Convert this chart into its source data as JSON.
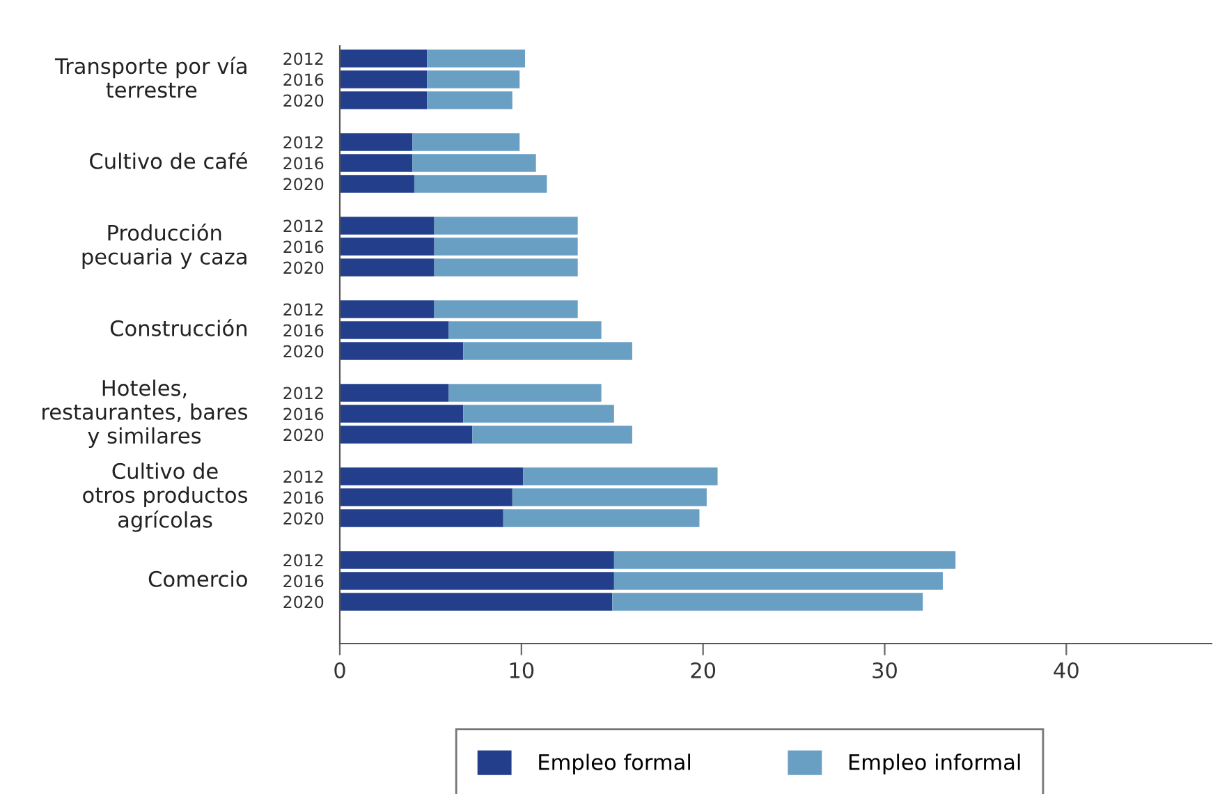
{
  "chart_data": {
    "type": "bar",
    "orientation": "horizontal",
    "stacked": true,
    "categories": [
      "2012",
      "2016",
      "2020",
      null,
      "2012",
      "2016",
      "2020",
      null,
      "2012",
      "2016",
      "2020",
      null,
      "2012",
      "2016",
      "2020",
      null,
      "2012",
      "2016",
      "2020",
      null,
      "2012",
      "2016",
      "2020",
      null,
      "2012",
      "2016",
      "2020"
    ],
    "series": [
      {
        "name": "Empleo formal",
        "color": "#233f8c",
        "values": [
          4.8,
          4.8,
          4.8,
          null,
          4.0,
          4.0,
          4.1,
          null,
          5.2,
          5.2,
          5.2,
          null,
          5.2,
          6.0,
          6.8,
          null,
          6.0,
          6.8,
          7.3,
          null,
          10.1,
          9.5,
          9.0,
          null,
          15.1,
          15.1,
          15.0
        ]
      },
      {
        "name": "Empleo informal",
        "color": "#6a9fc4",
        "values": [
          5.4,
          5.1,
          4.7,
          null,
          5.9,
          6.8,
          7.3,
          null,
          7.9,
          7.9,
          7.9,
          null,
          7.9,
          8.4,
          9.3,
          null,
          8.4,
          8.3,
          8.8,
          null,
          10.7,
          10.7,
          10.8,
          null,
          18.8,
          18.1,
          17.1
        ]
      }
    ],
    "annotations": [
      "Transporte por vía\nterrestre",
      "Cultivo de café",
      "Producción\npecuaria y caza",
      "Construcción",
      "Hoteles,\nrestaurantes, bares\ny similares",
      "Cultivo de\notros productos\nagrícolas",
      "Comercio"
    ],
    "xlim": [
      0,
      48
    ],
    "xticks": [
      0,
      10,
      20,
      30,
      40
    ],
    "grid": false,
    "legend": "bottom"
  }
}
